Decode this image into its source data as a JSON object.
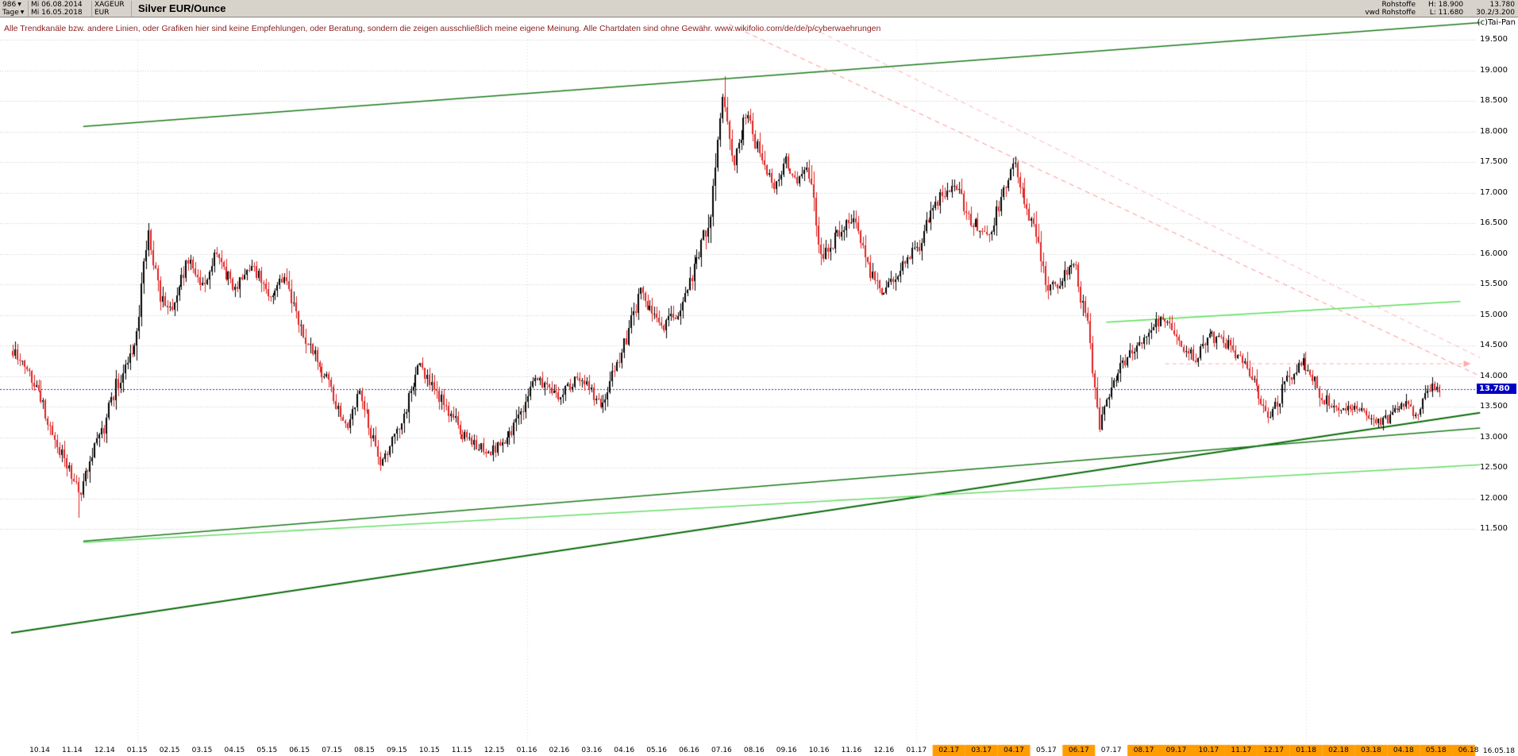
{
  "toolbar": {
    "bars_count": "986",
    "date_from": "Mi 06.08.2014",
    "symbol": "XAGEUR",
    "period": "Tage",
    "date_to": "Mi 16.05.2018",
    "currency": "EUR",
    "title": "Silver EUR/Ounce",
    "group": "Rohstoffe",
    "feed": "vwd Rohstoffe",
    "high": "H: 18.900",
    "low": "L: 11.680",
    "last": "13.780",
    "ratio": "30.2/3.200"
  },
  "chart": {
    "disclaimer": "Alle Trendkanäle bzw. andere Linien, oder Grafiken hier sind keine Empfehlungen, oder Beratung, sondern die zeigen ausschließlich meine eigene Meinung. Alle Chartdaten sind ohne Gewähr.  www.wikifolio.com/de/de/p/cyberwaehrungen",
    "copyright": "(c)Tai-Pan",
    "price_tag": "13.780",
    "last_date": "16.05.18"
  },
  "chart_data": {
    "type": "candlestick",
    "title": "Silver EUR/Ounce",
    "symbol": "XAGEUR",
    "timeframe": "Tage",
    "bars_total": 986,
    "date_range": [
      "Mi 06.08.2014",
      "Mi 16.05.2018"
    ],
    "high": 18.9,
    "low": 11.68,
    "last": 13.78,
    "price_line": 13.78,
    "seed": 986,
    "render_bars": 610,
    "y_axis": {
      "top_value": 19.5,
      "tick_step": 0.5,
      "tick_labels": [
        "19.500",
        "19.000",
        "18.500",
        "18.000",
        "17.500",
        "17.000",
        "16.500",
        "16.000",
        "15.500",
        "15.000",
        "14.500",
        "14.000",
        "13.500",
        "13.000",
        "12.500",
        "12.000",
        "11.500"
      ]
    },
    "x_labels": [
      "10.14",
      "11.14",
      "12.14",
      "01.15",
      "02.15",
      "03.15",
      "04.15",
      "05.15",
      "06.15",
      "07.15",
      "08.15",
      "09.15",
      "10.15",
      "11.15",
      "12.15",
      "01.16",
      "02.16",
      "03.16",
      "04.16",
      "05.16",
      "06.16",
      "07.16",
      "08.16",
      "09.16",
      "10.16",
      "11.16",
      "12.16",
      "01.17",
      "02.17",
      "03.17",
      "04.17",
      "05.17",
      "06.17",
      "07.17",
      "08.17",
      "09.17",
      "10.17",
      "11.17",
      "12.17",
      "01.18",
      "02.18",
      "03.18",
      "04.18",
      "05.18",
      "06.18"
    ],
    "x_highlight": {
      "start": 28,
      "skip": [
        31,
        33
      ]
    },
    "close_path": [
      [
        0,
        14.45
      ],
      [
        0.4,
        14.15
      ],
      [
        0.8,
        13.85
      ],
      [
        1.2,
        13.1
      ],
      [
        1.7,
        12.55
      ],
      [
        2.0,
        12.3
      ],
      [
        2.08,
        11.98
      ],
      [
        2.4,
        12.65
      ],
      [
        2.8,
        13.1
      ],
      [
        3.2,
        13.85
      ],
      [
        3.7,
        14.35
      ],
      [
        4.2,
        16.35
      ],
      [
        4.5,
        15.35
      ],
      [
        4.9,
        15.1
      ],
      [
        5.4,
        15.9
      ],
      [
        5.8,
        15.45
      ],
      [
        6.3,
        16.05
      ],
      [
        6.8,
        15.35
      ],
      [
        7.3,
        15.85
      ],
      [
        7.9,
        15.3
      ],
      [
        8.3,
        15.6
      ],
      [
        8.9,
        14.7
      ],
      [
        9.6,
        13.95
      ],
      [
        10.2,
        13.15
      ],
      [
        10.6,
        13.75
      ],
      [
        11.3,
        12.55
      ],
      [
        12.0,
        13.3
      ],
      [
        12.4,
        14.2
      ],
      [
        13.0,
        13.7
      ],
      [
        13.9,
        12.95
      ],
      [
        14.6,
        12.75
      ],
      [
        15.2,
        13.05
      ],
      [
        16.0,
        13.95
      ],
      [
        16.7,
        13.65
      ],
      [
        17.3,
        14.0
      ],
      [
        18.0,
        13.55
      ],
      [
        18.7,
        14.5
      ],
      [
        19.2,
        15.4
      ],
      [
        19.8,
        14.75
      ],
      [
        20.4,
        15.1
      ],
      [
        20.9,
        15.9
      ],
      [
        21.3,
        16.5
      ],
      [
        21.7,
        18.7
      ],
      [
        22.0,
        17.4
      ],
      [
        22.4,
        18.3
      ],
      [
        22.9,
        17.5
      ],
      [
        23.3,
        17.05
      ],
      [
        23.6,
        17.55
      ],
      [
        24.0,
        17.15
      ],
      [
        24.3,
        17.45
      ],
      [
        24.7,
        15.95
      ],
      [
        25.3,
        16.35
      ],
      [
        25.7,
        16.65
      ],
      [
        26.2,
        15.7
      ],
      [
        26.6,
        15.35
      ],
      [
        27.1,
        15.75
      ],
      [
        27.7,
        16.15
      ],
      [
        28.3,
        16.95
      ],
      [
        28.8,
        17.15
      ],
      [
        29.3,
        16.5
      ],
      [
        29.9,
        16.35
      ],
      [
        30.2,
        16.95
      ],
      [
        30.6,
        17.45
      ],
      [
        31.1,
        16.6
      ],
      [
        31.6,
        15.45
      ],
      [
        32.0,
        15.55
      ],
      [
        32.4,
        15.9
      ],
      [
        32.9,
        14.6
      ],
      [
        33.2,
        13.2
      ],
      [
        33.6,
        13.9
      ],
      [
        34.1,
        14.35
      ],
      [
        34.6,
        14.6
      ],
      [
        35.1,
        15.0
      ],
      [
        35.6,
        14.55
      ],
      [
        36.1,
        14.3
      ],
      [
        36.6,
        14.65
      ],
      [
        37.1,
        14.5
      ],
      [
        37.6,
        14.25
      ],
      [
        38.1,
        13.6
      ],
      [
        38.4,
        13.35
      ],
      [
        39.0,
        14.0
      ],
      [
        39.4,
        14.25
      ],
      [
        40.0,
        13.65
      ],
      [
        40.5,
        13.45
      ],
      [
        41.0,
        13.55
      ],
      [
        41.5,
        13.25
      ],
      [
        42.0,
        13.3
      ],
      [
        42.5,
        13.55
      ],
      [
        42.9,
        13.35
      ],
      [
        43.2,
        13.85
      ],
      [
        43.5,
        13.78
      ]
    ],
    "spikes": [
      {
        "m": 2.08,
        "low": 11.68
      },
      {
        "m": 21.75,
        "high": 18.9
      }
    ],
    "trend_lines": [
      {
        "name": "upper-channel-line",
        "color": "#1a7a1a",
        "width": 1.5,
        "dash": null,
        "from": [
          2.2,
          18.08
        ],
        "to": [
          44.8,
          19.78
        ]
      },
      {
        "name": "support-line-steep",
        "color": "#0b6b0b",
        "width": 2,
        "dash": null,
        "from": [
          0,
          9.8
        ],
        "to": [
          44.8,
          13.4
        ]
      },
      {
        "name": "support-line-mid",
        "color": "#1a7a1a",
        "width": 1.5,
        "dash": null,
        "from": [
          2.2,
          11.3
        ],
        "to": [
          44.8,
          13.15
        ]
      },
      {
        "name": "support-line-shallow",
        "color": "#66dd66",
        "width": 1.5,
        "dash": null,
        "from": [
          2.2,
          11.28
        ],
        "to": [
          44.8,
          12.55
        ]
      },
      {
        "name": "resistance-line-light",
        "color": "#55e055",
        "width": 1.5,
        "dash": null,
        "from": [
          33.4,
          14.88
        ],
        "to": [
          44.2,
          15.22
        ]
      },
      {
        "name": "downtrend-line-1",
        "color": "#ff8c8c",
        "width": 1,
        "dash": [
          6,
          5
        ],
        "from": [
          21.9,
          19.75
        ],
        "to": [
          44.8,
          14.0
        ]
      },
      {
        "name": "downtrend-line-2",
        "color": "#ffb0b0",
        "width": 1,
        "dash": [
          6,
          5
        ],
        "from": [
          24.2,
          19.75
        ],
        "to": [
          44.8,
          14.3
        ]
      },
      {
        "name": "target-line",
        "color": "#ffaaaa",
        "width": 1,
        "dash": [
          5,
          4
        ],
        "arrow": true,
        "from": [
          35.2,
          14.2
        ],
        "to": [
          44.3,
          14.2
        ]
      }
    ],
    "colors": {
      "up": "#000000",
      "down": "#e02020",
      "grid": "#c8c8c8",
      "year_grid": "#dcdcdc",
      "price_line": "#2a2ac8",
      "price_tag_bg": "#0000c4",
      "highlight": "#ff9c00"
    }
  }
}
